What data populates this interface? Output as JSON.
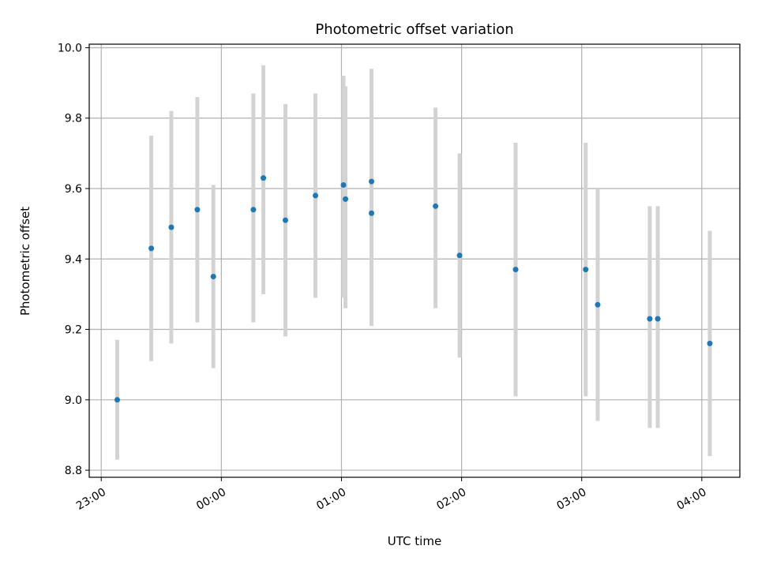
{
  "chart_data": {
    "type": "scatter",
    "title": "Photometric offset variation",
    "xlabel": "UTC time",
    "ylabel": "Photometric offset",
    "x_ticks": [
      "23:00",
      "00:00",
      "01:00",
      "02:00",
      "03:00",
      "04:00"
    ],
    "y_ticks": [
      "8.8",
      "9.0",
      "9.2",
      "9.4",
      "9.6",
      "9.8",
      "10.0"
    ],
    "ylim": [
      8.78,
      10.01
    ],
    "xlim": [
      "22:54",
      "04:19"
    ],
    "grid": true,
    "colors": {
      "points": "#1f77b4",
      "error_bars": "#d3d3d3",
      "grid": "#b0b0b0"
    },
    "points": [
      {
        "x": "23:08",
        "y": 9.0,
        "low": 8.83,
        "high": 9.17
      },
      {
        "x": "23:25",
        "y": 9.43,
        "low": 9.11,
        "high": 9.75
      },
      {
        "x": "23:35",
        "y": 9.49,
        "low": 9.16,
        "high": 9.82
      },
      {
        "x": "23:48",
        "y": 9.54,
        "low": 9.22,
        "high": 9.86
      },
      {
        "x": "23:56",
        "y": 9.35,
        "low": 9.09,
        "high": 9.61
      },
      {
        "x": "00:16",
        "y": 9.54,
        "low": 9.22,
        "high": 9.87
      },
      {
        "x": "00:21",
        "y": 9.63,
        "low": 9.3,
        "high": 9.95
      },
      {
        "x": "00:32",
        "y": 9.51,
        "low": 9.18,
        "high": 9.84
      },
      {
        "x": "00:47",
        "y": 9.58,
        "low": 9.29,
        "high": 9.87
      },
      {
        "x": "01:01",
        "y": 9.61,
        "low": 9.29,
        "high": 9.92
      },
      {
        "x": "01:02",
        "y": 9.57,
        "low": 9.26,
        "high": 9.89
      },
      {
        "x": "01:15",
        "y": 9.62,
        "low": 9.31,
        "high": 9.94
      },
      {
        "x": "01:15",
        "y": 9.53,
        "low": 9.21,
        "high": 9.86
      },
      {
        "x": "01:47",
        "y": 9.55,
        "low": 9.26,
        "high": 9.83
      },
      {
        "x": "01:59",
        "y": 9.41,
        "low": 9.12,
        "high": 9.7
      },
      {
        "x": "02:27",
        "y": 9.37,
        "low": 9.01,
        "high": 9.73
      },
      {
        "x": "03:02",
        "y": 9.37,
        "low": 9.01,
        "high": 9.73
      },
      {
        "x": "03:08",
        "y": 9.27,
        "low": 8.94,
        "high": 9.6
      },
      {
        "x": "03:34",
        "y": 9.23,
        "low": 8.92,
        "high": 9.55
      },
      {
        "x": "03:38",
        "y": 9.23,
        "low": 8.92,
        "high": 9.55
      },
      {
        "x": "04:04",
        "y": 9.16,
        "low": 8.84,
        "high": 9.48
      }
    ]
  }
}
